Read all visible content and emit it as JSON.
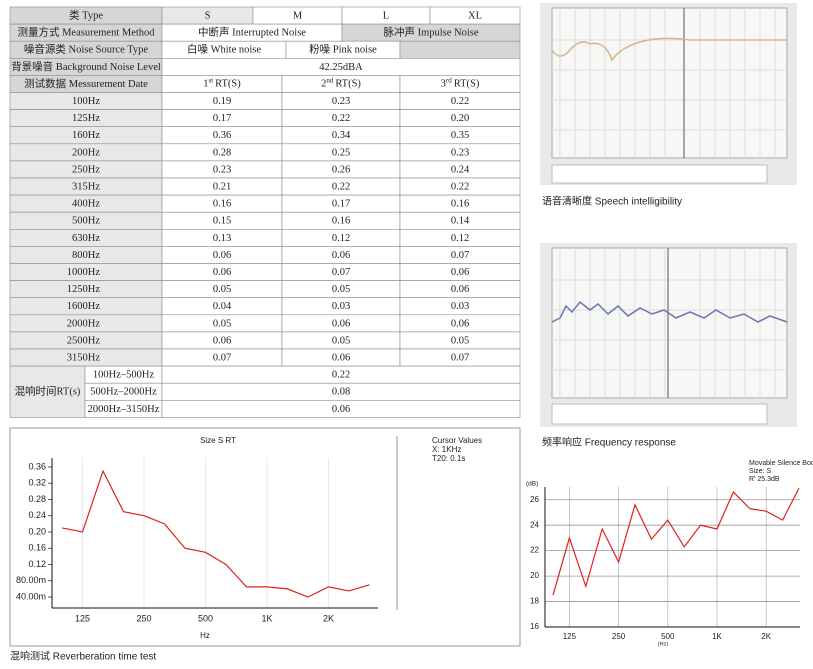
{
  "table": {
    "type_row": {
      "label": "类 Type",
      "cells": [
        "S",
        "M",
        "L",
        "XL"
      ]
    },
    "method_row": {
      "label": "测量方式 Measurement Method",
      "cells": [
        "中断声 Interrupted Noise",
        "脉冲声 Impulse Noise"
      ]
    },
    "noise_row": {
      "label": "噪音源类 Noise Source Type",
      "cells": [
        "白噪 White noise",
        "粉噪 Pink noise"
      ]
    },
    "background_row": {
      "label": "背景噪音 Background Noise Level",
      "value": "42.25dBA"
    },
    "date_row": {
      "label": "测试数据 Messurement Date",
      "cells": [
        {
          "num": "1",
          "sup": "st",
          "text": "RT(S)"
        },
        {
          "num": "2",
          "sup": "nd",
          "text": "RT(S)"
        },
        {
          "num": "3",
          "sup": "rd",
          "text": "RT(S)"
        }
      ]
    },
    "rows": [
      [
        "100Hz",
        "0.19",
        "0.23",
        "0.22"
      ],
      [
        "125Hz",
        "0.17",
        "0.22",
        "0.20"
      ],
      [
        "160Hz",
        "0.36",
        "0.34",
        "0.35"
      ],
      [
        "200Hz",
        "0.28",
        "0.25",
        "0.23"
      ],
      [
        "250Hz",
        "0.23",
        "0.26",
        "0.24"
      ],
      [
        "315Hz",
        "0.21",
        "0.22",
        "0.22"
      ],
      [
        "400Hz",
        "0.16",
        "0.17",
        "0.16"
      ],
      [
        "500Hz",
        "0.15",
        "0.16",
        "0.14"
      ],
      [
        "630Hz",
        "0.13",
        "0.12",
        "0.12"
      ],
      [
        "800Hz",
        "0.06",
        "0.06",
        "0.07"
      ],
      [
        "1000Hz",
        "0.06",
        "0.07",
        "0.06"
      ],
      [
        "1250Hz",
        "0.05",
        "0.05",
        "0.06"
      ],
      [
        "1600Hz",
        "0.04",
        "0.03",
        "0.03"
      ],
      [
        "2000Hz",
        "0.05",
        "0.06",
        "0.06"
      ],
      [
        "2500Hz",
        "0.06",
        "0.05",
        "0.05"
      ],
      [
        "3150Hz",
        "0.07",
        "0.06",
        "0.07"
      ]
    ],
    "rt": {
      "label": "混响时间RT(s)",
      "rows": [
        [
          "100Hz–500Hz",
          "0.22"
        ],
        [
          "500Hz–2000Hz",
          "0.08"
        ],
        [
          "2000Hz–3150Hz",
          "0.06"
        ]
      ]
    }
  },
  "images": [
    {
      "caption": "语音清晰度 Speech intelligibility"
    },
    {
      "caption": "频率响应 Frequency response"
    }
  ],
  "reverb_caption": "混响测试 Reverberation time test",
  "charts": [
    {
      "type": "line",
      "title": "Size S RT",
      "xlabel": "Hz",
      "cursor": [
        "Cursor Values",
        "X: 1KHz",
        "T20: 0.1s"
      ],
      "categories": [
        null,
        "125",
        null,
        null,
        "250",
        null,
        null,
        "500",
        null,
        null,
        "1K",
        null,
        null,
        "2K",
        null,
        null
      ],
      "values": [
        0.21,
        0.2,
        0.35,
        0.25,
        0.24,
        0.22,
        0.16,
        0.15,
        0.12,
        0.065,
        0.065,
        0.06,
        0.04,
        0.065,
        0.055,
        0.07
      ],
      "color": "#e0201c",
      "ylim": [
        0.013,
        0.382
      ],
      "yticks": [
        0.36,
        0.32,
        0.28,
        0.24,
        {
          "value": 0.2,
          "label": "0.20"
        },
        0.16,
        0.12,
        {
          "value": 0.08,
          "label": "80.00m"
        },
        {
          "value": 0.04,
          "label": "40.00m"
        }
      ],
      "grid": "x"
    },
    {
      "type": "line",
      "title": [
        "Movable Silence Booth",
        "Size: S",
        "R' 25.3dB"
      ],
      "ylabel": "(dB)",
      "xlabel": "(Hz)",
      "categories": [
        null,
        "125",
        null,
        null,
        "250",
        null,
        null,
        "500",
        null,
        null,
        "1K",
        null,
        null,
        "2K",
        null,
        null
      ],
      "values": [
        18.5,
        23,
        19.2,
        23.7,
        21.1,
        25.6,
        22.9,
        24.4,
        22.3,
        24.0,
        23.7,
        26.6,
        25.3,
        25.1,
        24.4,
        26.9
      ],
      "color": "#e0201c",
      "ylim": [
        16,
        27
      ],
      "yticks": [
        16,
        18,
        20,
        22,
        24,
        26
      ],
      "grid": "both"
    }
  ]
}
